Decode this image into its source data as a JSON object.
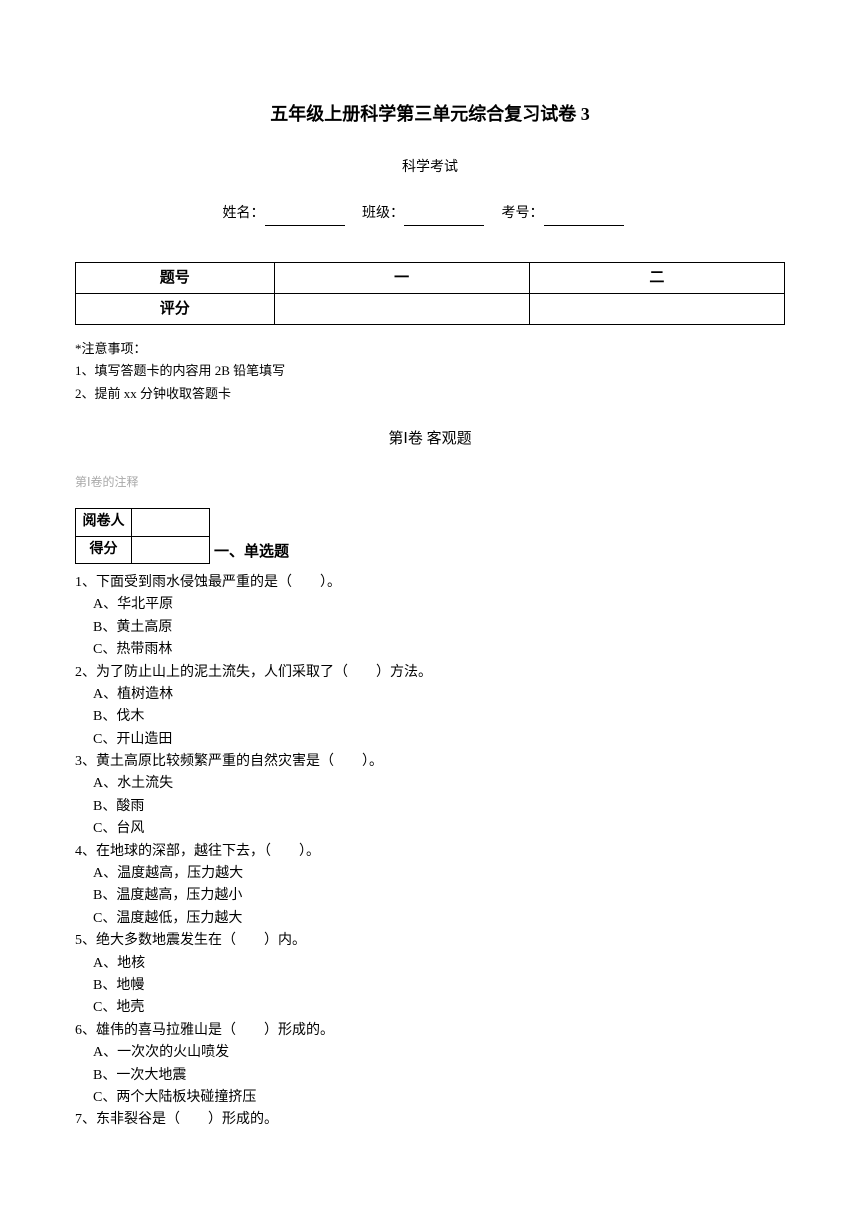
{
  "title": "五年级上册科学第三单元综合复习试卷 3",
  "subtitle": "科学考试",
  "info": {
    "name_label": "姓名：",
    "class_label": "班级：",
    "exam_no_label": "考号："
  },
  "score_table": {
    "row1_label": "题号",
    "row1_col1": "一",
    "row1_col2": "二",
    "row2_label": "评分"
  },
  "notes": {
    "title": "*注意事项：",
    "item1": "1、填写答题卡的内容用 2B 铅笔填写",
    "item2": "2、提前 xx 分钟收取答题卡"
  },
  "section1_heading": "第Ⅰ卷 客观题",
  "section1_note": "第Ⅰ卷的注释",
  "grader_table": {
    "row1": "阅卷人",
    "row2": "得分"
  },
  "single_choice_title": "一、单选题",
  "questions": [
    {
      "text": "1、下面受到雨水侵蚀最严重的是（　　）。",
      "options": [
        "A、华北平原",
        "B、黄土高原",
        "C、热带雨林"
      ]
    },
    {
      "text": "2、为了防止山上的泥土流失，人们采取了（　　）方法。",
      "options": [
        "A、植树造林",
        "B、伐木",
        "C、开山造田"
      ]
    },
    {
      "text": "3、黄土高原比较频繁严重的自然灾害是（　　）。",
      "options": [
        "A、水土流失",
        "B、酸雨",
        "C、台风"
      ]
    },
    {
      "text": "4、在地球的深部，越往下去，（　　）。",
      "options": [
        "A、温度越高，压力越大",
        "B、温度越高，压力越小",
        "C、温度越低，压力越大"
      ]
    },
    {
      "text": "5、绝大多数地震发生在（　　）内。",
      "options": [
        "A、地核",
        "B、地幔",
        "C、地壳"
      ]
    },
    {
      "text": "6、雄伟的喜马拉雅山是（　　）形成的。",
      "options": [
        "A、一次次的火山喷发",
        "B、一次大地震",
        "C、两个大陆板块碰撞挤压"
      ]
    },
    {
      "text": "7、东非裂谷是（　　）形成的。",
      "options": []
    }
  ]
}
